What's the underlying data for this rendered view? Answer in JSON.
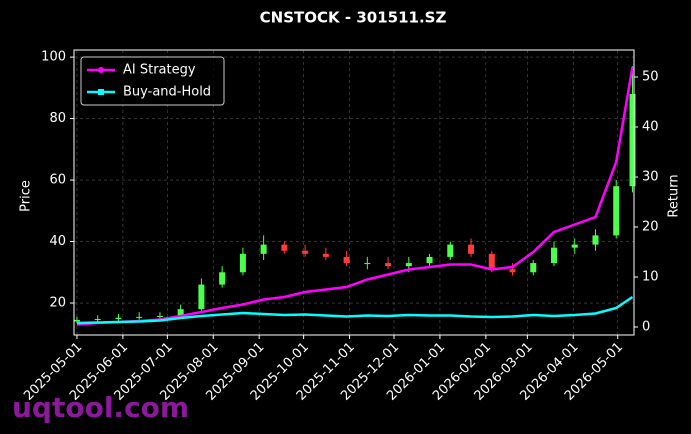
{
  "chart_data": {
    "type": "candlestick",
    "title": "CNSTOCK - 301511.SZ",
    "ylabel": "Price",
    "y2label": "Return",
    "watermark": "uqtool.com",
    "x": [
      "2025-05-01",
      "2025-05-15",
      "2025-05-29",
      "2025-06-12",
      "2025-06-26",
      "2025-07-10",
      "2025-07-24",
      "2025-08-07",
      "2025-08-21",
      "2025-09-04",
      "2025-09-18",
      "2025-10-02",
      "2025-10-16",
      "2025-10-30",
      "2025-11-13",
      "2025-11-27",
      "2025-12-11",
      "2025-12-25",
      "2026-01-08",
      "2026-01-22",
      "2026-02-05",
      "2026-02-19",
      "2026-03-05",
      "2026-03-19",
      "2026-04-02",
      "2026-04-16",
      "2026-04-30",
      "2026-05-11"
    ],
    "open": [
      14.0,
      14.5,
      14.8,
      15.2,
      15.5,
      15.8,
      18,
      26,
      30,
      36,
      39,
      37,
      36,
      35,
      33,
      33,
      32,
      33,
      35,
      39,
      36,
      31,
      30,
      33,
      38,
      39,
      42,
      58
    ],
    "high": [
      15.5,
      16,
      16.5,
      17,
      17,
      19.5,
      28,
      32,
      38,
      42,
      40,
      39,
      38,
      37,
      35,
      35,
      35,
      36,
      40,
      41,
      37,
      33,
      34,
      40,
      41,
      44,
      60,
      97
    ],
    "low": [
      13.5,
      13.8,
      14,
      14.5,
      14.8,
      15.5,
      17.5,
      25,
      29,
      34,
      36,
      35,
      34,
      32,
      31,
      31,
      30,
      32,
      34,
      35,
      30,
      29,
      29,
      32,
      36,
      37,
      41,
      56
    ],
    "close": [
      14.5,
      14.8,
      15.2,
      15.5,
      15.8,
      18,
      26,
      30,
      36,
      39,
      37,
      36,
      35,
      33,
      33,
      32,
      33,
      35,
      39,
      36,
      31,
      30,
      33,
      38,
      39,
      42,
      58,
      88
    ],
    "up_color": "#4cff4c",
    "down_color": "#ff3b3b",
    "series": [
      {
        "name": "AI Strategy",
        "color": "#ff00ff",
        "axis": "y2",
        "values": [
          0.5,
          0.8,
          1.0,
          1.2,
          1.5,
          2.2,
          3,
          3.8,
          4.5,
          5.5,
          6,
          7,
          7.5,
          8,
          9.5,
          10.5,
          11.5,
          12,
          12.5,
          12.5,
          11.5,
          12,
          15,
          19,
          20.5,
          22,
          33,
          52
        ]
      },
      {
        "name": "Buy-and-Hold",
        "color": "#00ffff",
        "axis": "y2",
        "values": [
          0.8,
          0.9,
          1.0,
          1.1,
          1.3,
          1.8,
          2.2,
          2.5,
          2.8,
          2.6,
          2.4,
          2.5,
          2.3,
          2.1,
          2.3,
          2.2,
          2.4,
          2.3,
          2.3,
          2.1,
          2.0,
          2.1,
          2.4,
          2.2,
          2.4,
          2.7,
          3.8,
          6
        ]
      }
    ],
    "xlim": [
      "2025-04-29",
      "2026-05-12"
    ],
    "xticks": [
      "2025-05-01",
      "2025-06-01",
      "2025-07-01",
      "2025-08-01",
      "2025-09-01",
      "2025-10-01",
      "2025-11-01",
      "2025-12-01",
      "2026-01-01",
      "2026-02-01",
      "2026-03-01",
      "2026-04-01",
      "2026-05-01"
    ],
    "ylim": [
      9.6,
      102.3
    ],
    "yticks": [
      20,
      40,
      60,
      80,
      100
    ],
    "y2lim": [
      -1.6,
      55.4
    ],
    "y2ticks": [
      0,
      10,
      20,
      30,
      40,
      50
    ],
    "grid": true,
    "legend": "upper-left"
  }
}
